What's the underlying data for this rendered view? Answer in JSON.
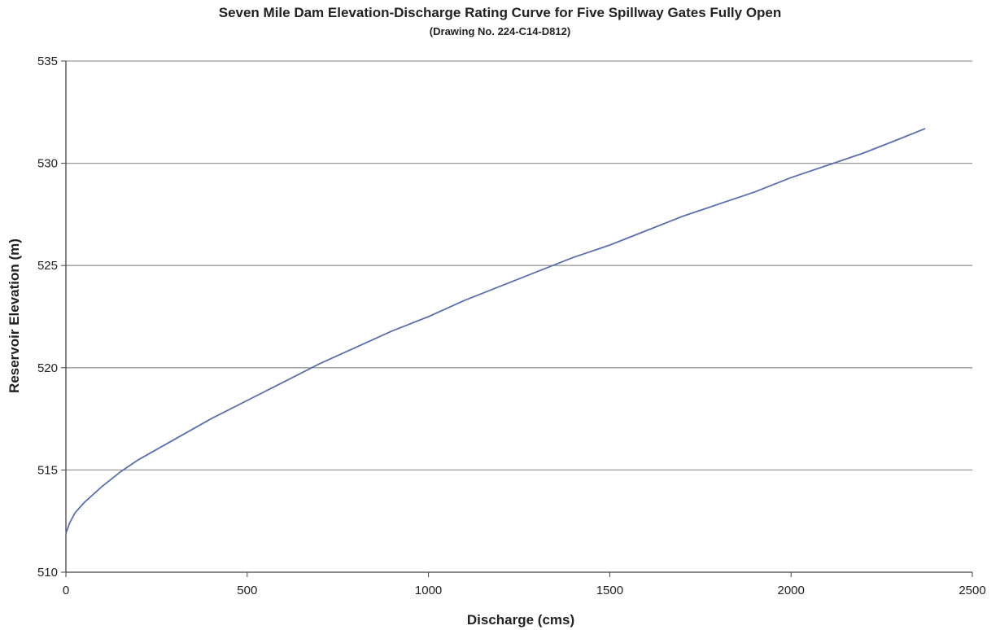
{
  "chart_data": {
    "type": "line",
    "title": "Seven Mile Dam Elevation-Discharge Rating Curve for Five Spillway Gates Fully Open",
    "subtitle": "(Drawing No. 224-C14-D812)",
    "xlabel": "Discharge (cms)",
    "ylabel": "Reservoir Elevation (m)",
    "xlim": [
      0,
      2500
    ],
    "ylim": [
      510,
      535
    ],
    "xticks": [
      0,
      500,
      1000,
      1500,
      2000,
      2500
    ],
    "yticks": [
      510,
      515,
      520,
      525,
      530,
      535
    ],
    "grid": "horizontal",
    "series": [
      {
        "color": "#5a6fb0",
        "x": [
          0,
          10,
          25,
          50,
          100,
          150,
          200,
          300,
          400,
          500,
          600,
          700,
          800,
          900,
          1000,
          1100,
          1200,
          1300,
          1400,
          1500,
          1600,
          1700,
          1800,
          1900,
          2000,
          2100,
          2200,
          2300,
          2370
        ],
        "y": [
          511.9,
          512.4,
          512.9,
          513.4,
          514.2,
          514.9,
          515.5,
          516.5,
          517.5,
          518.4,
          519.3,
          520.2,
          521.0,
          521.8,
          522.5,
          523.3,
          524.0,
          524.7,
          525.4,
          526.0,
          526.7,
          527.4,
          528.0,
          528.6,
          529.3,
          529.9,
          530.5,
          531.2,
          531.7
        ]
      }
    ]
  }
}
